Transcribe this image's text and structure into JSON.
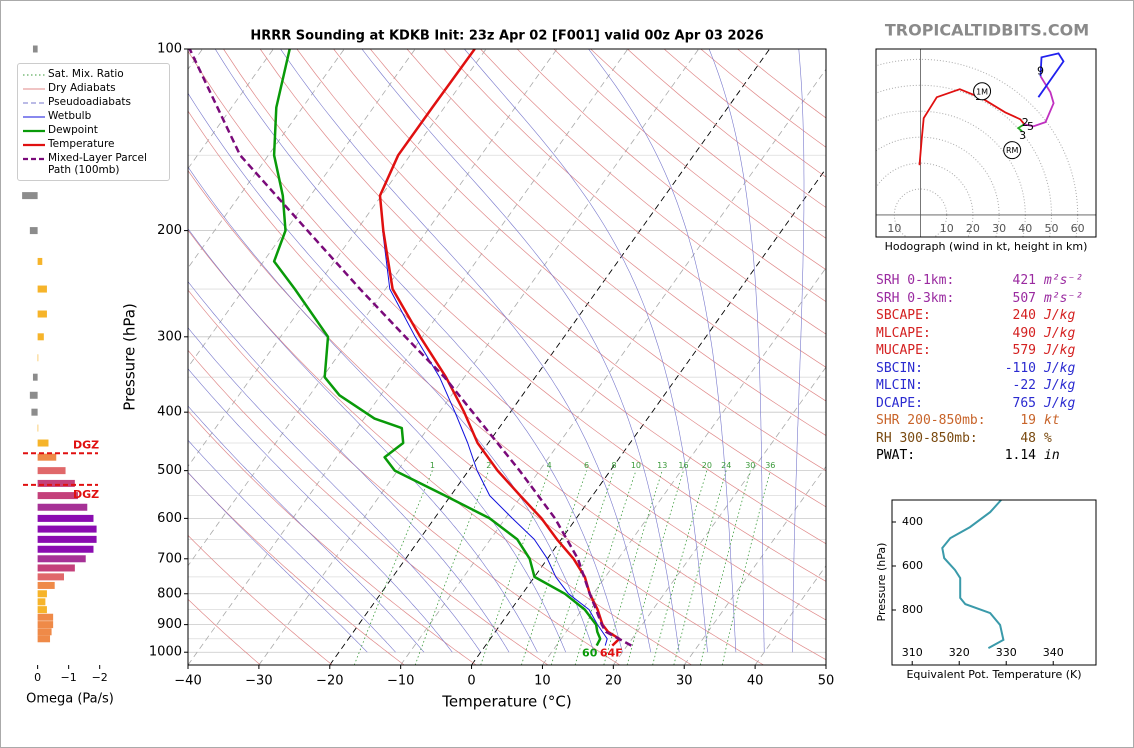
{
  "watermark": "TROPICALTIDBITS.COM",
  "chart_data": [
    {
      "type": "skewt",
      "title": "HRRR Sounding at KDKB Init: 23z Apr 02 [F001] valid 00z Apr 03 2026",
      "xlabel": "Temperature (°C)",
      "ylabel": "Pressure (hPa)",
      "xlim": [
        -40,
        50
      ],
      "ylim": [
        1050,
        100
      ],
      "log_y": true,
      "grid": true,
      "xticks": [
        {
          "value": -40,
          "label": "−40"
        },
        {
          "value": -30,
          "label": "−30"
        },
        {
          "value": -20,
          "label": "−20"
        },
        {
          "value": -10,
          "label": "−10"
        },
        0,
        10,
        20,
        30,
        40,
        50
      ],
      "yticks": [
        100,
        200,
        300,
        400,
        500,
        600,
        700,
        800,
        900,
        1000
      ],
      "reference_lines": [
        {
          "name": "Sat. Mix. Ratio",
          "color": "#3a9a3a",
          "style": "dotted"
        },
        {
          "name": "Dry Adiabats",
          "color": "#e08a8a",
          "style": "solid"
        },
        {
          "name": "Pseudoadiabats",
          "color": "#7777cc",
          "style": "dashed"
        }
      ],
      "mixing_ratios": [
        1,
        2,
        4,
        6,
        8,
        10,
        13,
        16,
        20,
        24,
        30,
        36
      ],
      "series": [
        {
          "name": "Wetbulb",
          "color": "#1010dd",
          "style": "solid",
          "linewidth": 1,
          "pressure": [
            975,
            950,
            900,
            850,
            800,
            750,
            700,
            650,
            600,
            550,
            500,
            450,
            400,
            350,
            300,
            250,
            200
          ],
          "values": [
            16.9,
            16.5,
            13.7,
            11,
            6.5,
            3,
            0,
            -3.8,
            -9,
            -14.5,
            -18.8,
            -22.9,
            -27.8,
            -33.5,
            -41,
            -49.4,
            -56.3
          ]
        },
        {
          "name": "Dewpoint",
          "color": "#099a09",
          "style": "solid",
          "linewidth": 2.5,
          "pressure": [
            975,
            950,
            925,
            900,
            850,
            800,
            750,
            700,
            650,
            600,
            550,
            500,
            475,
            450,
            425,
            410,
            375,
            350,
            300,
            250,
            225,
            200,
            175,
            150,
            125,
            100
          ],
          "values": [
            15.7,
            15.5,
            14.4,
            13.5,
            10.4,
            6,
            0,
            -2.5,
            -6.2,
            -12.2,
            -20.8,
            -30.4,
            -33.2,
            -32,
            -33.7,
            -38.5,
            -45.8,
            -49.7,
            -53.3,
            -62.8,
            -68.5,
            -70,
            -73.9,
            -79.2,
            -83.7,
            -87.7
          ]
        },
        {
          "name": "Temperature",
          "color": "#e01010",
          "style": "solid",
          "linewidth": 2.5,
          "pressure": [
            975,
            950,
            925,
            900,
            850,
            800,
            750,
            700,
            650,
            600,
            550,
            500,
            450,
            400,
            350,
            300,
            250,
            200,
            175,
            150,
            125,
            100
          ],
          "values": [
            17.9,
            18.2,
            15.9,
            14.4,
            12.2,
            9.5,
            7.1,
            3.7,
            -0.6,
            -4.9,
            -10.2,
            -15.9,
            -21.5,
            -26.5,
            -32.6,
            -40.3,
            -49,
            -56.2,
            -60.2,
            -61.7,
            -61.7,
            -61.6
          ]
        },
        {
          "name": "Mixed-Layer Parcel Path (100mb)",
          "color": "#7a0a7a",
          "style": "dashed",
          "linewidth": 2.5,
          "pressure": [
            975,
            925,
            900,
            850,
            800,
            700,
            600,
            500,
            400,
            350,
            300,
            250,
            200,
            150,
            100
          ],
          "values": [
            20.6,
            15.6,
            14.3,
            12,
            9.5,
            4.3,
            -3,
            -12.8,
            -25.3,
            -32.8,
            -42.4,
            -53.6,
            -66.9,
            -84,
            -101.8
          ]
        }
      ],
      "surface_labels": [
        {
          "text": "60",
          "color": "#099a09"
        },
        {
          "text": "64F",
          "color": "#e01010"
        }
      ]
    },
    {
      "type": "hbar",
      "xlabel": "Omega (Pa/s)",
      "xlim": [
        0.6,
        -2.3
      ],
      "ylim": [
        1050,
        100
      ],
      "xticks": [
        0,
        {
          "value": -1,
          "label": "−1"
        },
        {
          "value": -2,
          "label": "−2"
        }
      ],
      "pressure": [
        100,
        125,
        150,
        175,
        200,
        225,
        250,
        275,
        300,
        325,
        350,
        375,
        400,
        425,
        450,
        475,
        500,
        525,
        550,
        575,
        600,
        625,
        650,
        675,
        700,
        725,
        750,
        775,
        800,
        825,
        850,
        875,
        900,
        925,
        950
      ],
      "values": [
        0.15,
        0.2,
        0.5,
        0.5,
        0.25,
        -0.15,
        -0.3,
        -0.3,
        -0.2,
        -0.02,
        0.15,
        0.25,
        0.2,
        -0.02,
        -0.35,
        -0.6,
        -0.9,
        -1.2,
        -1.3,
        -1.6,
        -1.8,
        -1.9,
        -1.9,
        -1.8,
        -1.55,
        -1.2,
        -0.85,
        -0.55,
        -0.3,
        -0.25,
        -0.3,
        -0.5,
        -0.5,
        -0.45,
        -0.4
      ],
      "dgz": {
        "label": "DGZ",
        "pressures": [
          468,
          528
        ],
        "color": "#e01010"
      }
    },
    {
      "type": "hodograph",
      "xlabel": "Hodograph (wind in kt, height in km)",
      "xlim": [
        -17,
        67
      ],
      "ylim": [
        -8.5,
        64
      ],
      "xticks": [
        {
          "value": -10,
          "label": "10"
        },
        10,
        20,
        30,
        40,
        50,
        60
      ],
      "series": [
        {
          "color": "#e01010",
          "u": [
            -0.4,
            0.4,
            1.2,
            6.2,
            15,
            23.5,
            32.3,
            38.1,
            39.6
          ],
          "v": [
            19.2,
            28.8,
            37.3,
            45.4,
            48.5,
            45,
            39.6,
            36.9,
            35
          ]
        },
        {
          "color": "#22aa22",
          "u": [
            39.6,
            37.3,
            38.8
          ],
          "v": [
            35,
            33.5,
            32.3
          ]
        },
        {
          "color": "#c030c0",
          "u": [
            39.6,
            43.1,
            47.7,
            50.8,
            49.6,
            45.8
          ],
          "v": [
            35,
            34.2,
            35.8,
            43.1,
            47.3,
            53.5
          ]
        },
        {
          "color": "#2020ee",
          "u": [
            45.8,
            46.2,
            52.7,
            54.6,
            45
          ],
          "v": [
            53.5,
            60.8,
            62.3,
            59.2,
            45.4
          ]
        }
      ],
      "height_labels": [
        {
          "text": "1",
          "u": 22,
          "v": 45.4
        },
        {
          "text": "2",
          "u": 40,
          "v": 35.4
        },
        {
          "text": "5",
          "u": 42,
          "v": 34
        },
        {
          "text": "3",
          "u": 39,
          "v": 30.4
        },
        {
          "text": "9",
          "u": 45.8,
          "v": 55.4
        }
      ],
      "storm_motion": [
        {
          "text": "1M",
          "u": 23.5,
          "v": 47.7
        },
        {
          "text": "RM",
          "u": 35,
          "v": 25
        }
      ]
    },
    {
      "type": "line",
      "xlabel": "Equivalent Pot. Temperature (K)",
      "ylabel": "Pressure (hPa)",
      "xlim": [
        305.7,
        349.1
      ],
      "ylim": [
        1050,
        300
      ],
      "xticks": [
        310,
        320,
        330,
        340
      ],
      "yticks": [
        400,
        600,
        800
      ],
      "series": [
        {
          "color": "#3a9aaa",
          "pressure": [
            300,
            355,
            423,
            473,
            518,
            564,
            618,
            655,
            745,
            773,
            814,
            868,
            936,
            973
          ],
          "values": [
            328.9,
            326.6,
            322.3,
            318.1,
            316.4,
            316.8,
            319.1,
            320.2,
            320.2,
            321.3,
            326.6,
            328.7,
            329.4,
            326.2
          ]
        }
      ]
    }
  ],
  "stats": {
    "rows": [
      {
        "label": "SRH 0-1km:",
        "value": 421,
        "unit": "m²s⁻²",
        "color": "#9a2aa0"
      },
      {
        "label": "SRH 0-3km:",
        "value": 507,
        "unit": "m²s⁻²",
        "color": "#9a2aa0"
      },
      {
        "label": "SBCAPE:",
        "value": 240,
        "unit": "J/kg",
        "color": "#d42020"
      },
      {
        "label": "MLCAPE:",
        "value": 490,
        "unit": "J/kg",
        "color": "#d42020"
      },
      {
        "label": "MUCAPE:",
        "value": 579,
        "unit": "J/kg",
        "color": "#d42020"
      },
      {
        "label": "SBCIN:",
        "value": -110,
        "unit": "J/kg",
        "color": "#2a2ad0"
      },
      {
        "label": "MLCIN:",
        "value": -22,
        "unit": "J/kg",
        "color": "#2a2ad0"
      },
      {
        "label": "DCAPE:",
        "value": 765,
        "unit": "J/kg",
        "color": "#2a2ad0"
      },
      {
        "label": "SHR 200-850mb:",
        "value": 19,
        "unit": "kt",
        "color": "#c8642a"
      },
      {
        "label": "RH 300-850mb:",
        "value": 48,
        "unit": "%",
        "color": "#7a4a10"
      },
      {
        "label": "PWAT:",
        "value": 1.14,
        "unit": "in",
        "color": "#000000"
      }
    ]
  }
}
